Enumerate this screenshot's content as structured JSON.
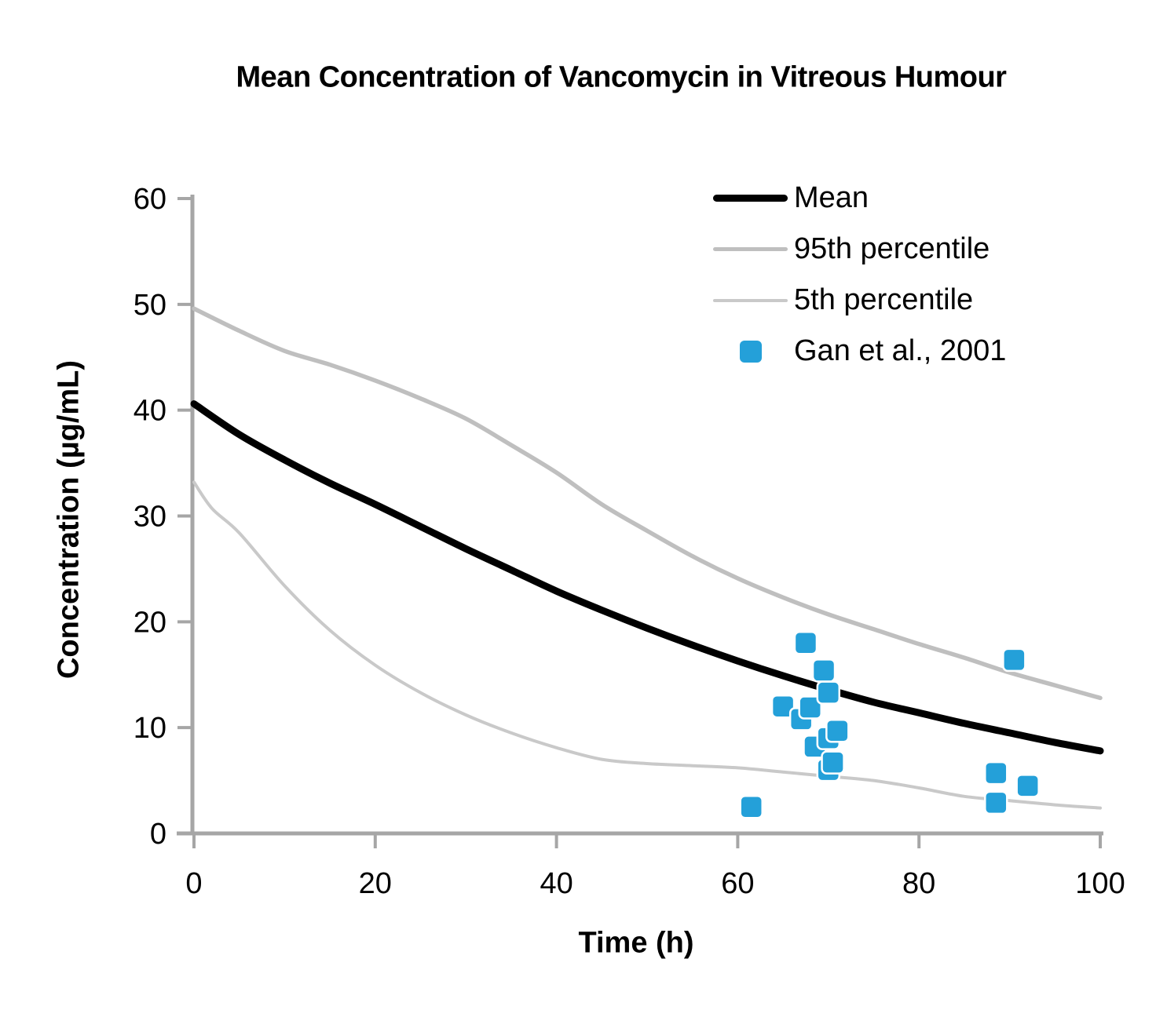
{
  "chart_data": {
    "type": "line",
    "title": "Mean Concentration of Vancomycin in Vitreous Humour",
    "xlabel": "Time (h)",
    "ylabel": "Concentration (µg/mL)",
    "xlim": [
      0,
      100
    ],
    "ylim": [
      0,
      60
    ],
    "xticks": [
      0,
      20,
      40,
      60,
      80,
      100
    ],
    "yticks": [
      0,
      10,
      20,
      30,
      40,
      50,
      60
    ],
    "grid": false,
    "legend_position": "top-right-inside",
    "series": [
      {
        "name": "Mean",
        "type": "line",
        "color": "#000000",
        "width": 9,
        "x": [
          0,
          5,
          10,
          15,
          20,
          25,
          30,
          35,
          40,
          45,
          50,
          55,
          60,
          65,
          70,
          75,
          80,
          85,
          90,
          95,
          100
        ],
        "values": [
          40.6,
          37.7,
          35.3,
          33.1,
          31.1,
          29.0,
          26.9,
          24.9,
          22.9,
          21.1,
          19.4,
          17.8,
          16.3,
          14.9,
          13.6,
          12.4,
          11.4,
          10.4,
          9.5,
          8.6,
          7.8
        ]
      },
      {
        "name": "95th percentile",
        "type": "line",
        "color": "#BFBFBF",
        "width": 5.5,
        "x": [
          0,
          5,
          10,
          15,
          20,
          25,
          30,
          35,
          40,
          45,
          50,
          55,
          60,
          65,
          70,
          75,
          80,
          85,
          90,
          95,
          100
        ],
        "values": [
          49.6,
          47.5,
          45.6,
          44.3,
          42.8,
          41.1,
          39.2,
          36.7,
          34.1,
          31.1,
          28.6,
          26.2,
          24.1,
          22.3,
          20.7,
          19.3,
          17.9,
          16.6,
          15.2,
          14.0,
          12.8
        ]
      },
      {
        "name": "5th percentile",
        "type": "line",
        "color": "#C9C9C9",
        "width": 4,
        "x": [
          0,
          2,
          5,
          10,
          15,
          20,
          25,
          30,
          35,
          40,
          45,
          50,
          55,
          60,
          65,
          70,
          75,
          80,
          85,
          90,
          95,
          100
        ],
        "values": [
          33.2,
          30.7,
          28.4,
          23.4,
          19.2,
          15.9,
          13.3,
          11.2,
          9.5,
          8.1,
          7.0,
          6.6,
          6.4,
          6.2,
          5.8,
          5.4,
          5.0,
          4.3,
          3.5,
          3.1,
          2.7,
          2.4
        ]
      },
      {
        "name": "Gan et al., 2001",
        "type": "scatter",
        "marker": "square",
        "color": "#24A0D9",
        "points": [
          [
            61.5,
            2.5
          ],
          [
            65,
            12
          ],
          [
            67,
            10.8
          ],
          [
            67.5,
            18
          ],
          [
            68,
            11.9
          ],
          [
            68.5,
            8.2
          ],
          [
            69.5,
            15.4
          ],
          [
            70,
            13.3
          ],
          [
            70,
            9
          ],
          [
            70,
            6
          ],
          [
            70.5,
            6.7
          ],
          [
            71,
            9.7
          ],
          [
            88.5,
            5.7
          ],
          [
            88.5,
            2.9
          ],
          [
            90.5,
            16.4
          ],
          [
            92,
            4.5
          ]
        ]
      }
    ]
  },
  "colors": {
    "axis": "#A6A6A6",
    "text": "#000000",
    "background": "#FFFFFF",
    "marker_outline": "#FFFFFF"
  }
}
